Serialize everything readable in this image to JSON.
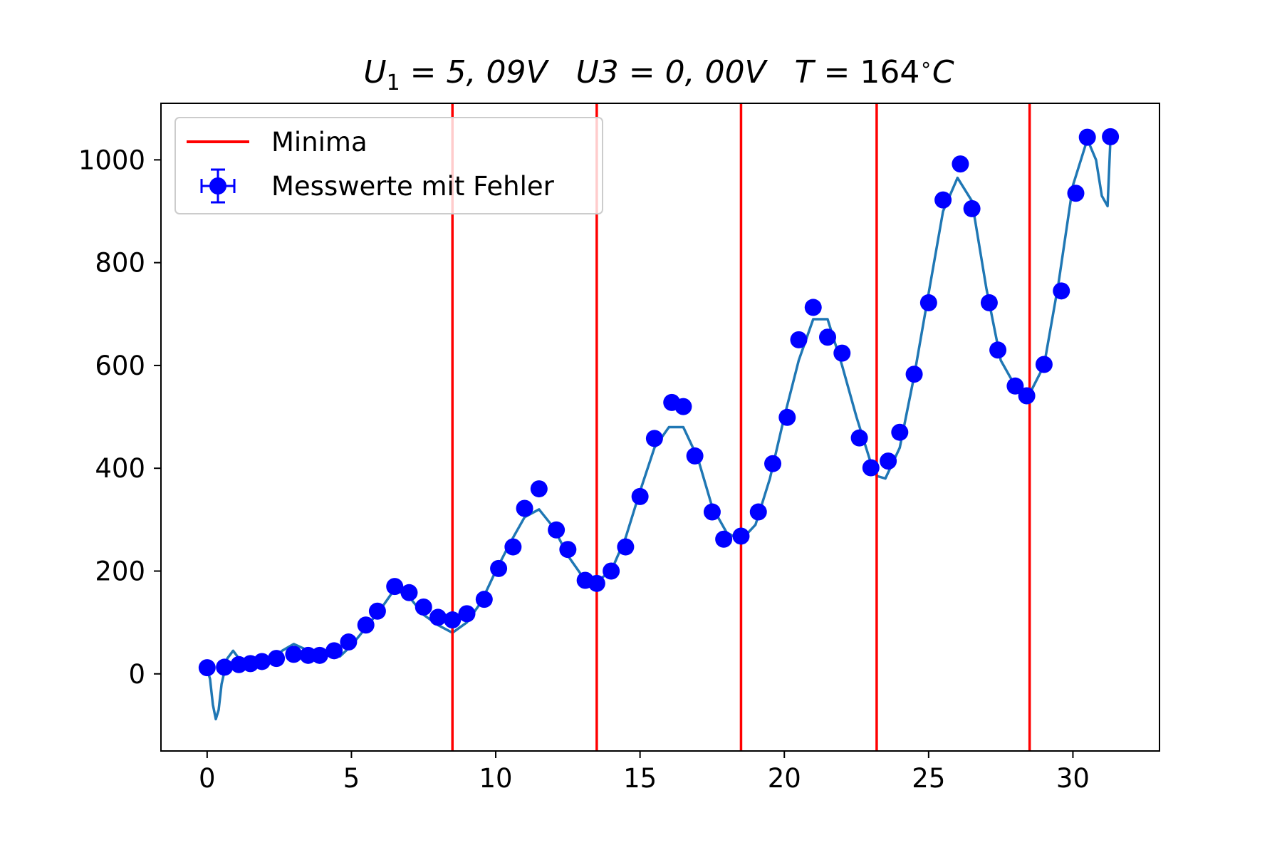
{
  "chart_data": {
    "type": "scatter",
    "title": {
      "u1_sym": "U",
      "u1_sub": "1",
      "u1_val": " = 5, 09V",
      "u3": "U3 = 0, 00V",
      "t_sym": "T",
      "t_val": " = 164",
      "t_deg": "∘",
      "t_unit": "C"
    },
    "xlabel": "",
    "ylabel": "",
    "xlim": [
      -1.6,
      33.0
    ],
    "ylim": [
      -150,
      1110
    ],
    "x_ticks": [
      0,
      5,
      10,
      15,
      20,
      25,
      30
    ],
    "y_ticks": [
      0,
      200,
      400,
      600,
      800,
      1000
    ],
    "grid": false,
    "legend": {
      "placement": "top-left",
      "entries": [
        {
          "label": "Minima",
          "kind": "line",
          "color": "#ff0000"
        },
        {
          "label": "Messwerte mit Fehler",
          "kind": "errorbar-marker",
          "color": "#0000ff"
        }
      ]
    },
    "minima": {
      "name": "Minima",
      "color": "#ff0000",
      "x": [
        8.5,
        13.5,
        18.5,
        23.2,
        28.5
      ]
    },
    "points": {
      "name": "Messwerte mit Fehler",
      "color": "#0000ff",
      "x": [
        0.0,
        0.6,
        1.1,
        1.5,
        1.9,
        2.4,
        3.0,
        3.5,
        3.9,
        4.4,
        4.9,
        5.5,
        5.9,
        6.5,
        7.0,
        7.5,
        8.0,
        8.5,
        9.0,
        9.6,
        10.1,
        10.6,
        11.0,
        11.5,
        12.1,
        12.5,
        13.1,
        13.5,
        14.0,
        14.5,
        15.0,
        15.5,
        16.1,
        16.5,
        16.9,
        17.5,
        17.9,
        18.5,
        19.1,
        19.6,
        20.1,
        20.5,
        21.0,
        21.5,
        22.0,
        22.6,
        23.0,
        23.6,
        24.0,
        24.5,
        25.0,
        25.5,
        26.1,
        26.5,
        27.1,
        27.4,
        28.0,
        28.4,
        29.0,
        29.6,
        30.1,
        30.5,
        31.3
      ],
      "y": [
        12,
        13,
        18,
        20,
        24,
        30,
        38,
        36,
        36,
        45,
        62,
        95,
        122,
        170,
        158,
        130,
        110,
        105,
        117,
        145,
        205,
        247,
        322,
        360,
        280,
        242,
        182,
        176,
        200,
        247,
        345,
        458,
        528,
        520,
        424,
        315,
        262,
        268,
        315,
        409,
        499,
        650,
        713,
        655,
        624,
        459,
        401,
        414,
        470,
        583,
        722,
        922,
        992,
        905,
        722,
        630,
        560,
        541,
        602,
        745,
        935,
        1044,
        1045
      ]
    },
    "fit_curve": {
      "color": "#1f77b4",
      "x": [
        0.0,
        0.1,
        0.2,
        0.3,
        0.4,
        0.5,
        0.7,
        0.9,
        1.1,
        1.3,
        1.6,
        1.9,
        2.2,
        2.6,
        3.0,
        3.4,
        3.8,
        4.2,
        4.6,
        5.0,
        5.5,
        6.0,
        6.5,
        7.0,
        7.5,
        8.0,
        8.5,
        9.0,
        9.5,
        10.0,
        10.5,
        11.0,
        11.5,
        12.0,
        12.5,
        13.0,
        13.5,
        14.0,
        14.5,
        15.0,
        15.5,
        16.0,
        16.5,
        17.0,
        17.5,
        18.0,
        18.5,
        19.0,
        19.5,
        20.0,
        20.5,
        21.0,
        21.5,
        22.0,
        22.5,
        23.0,
        23.2,
        23.5,
        24.0,
        24.5,
        25.0,
        25.5,
        26.0,
        26.5,
        27.0,
        27.5,
        28.0,
        28.5,
        29.0,
        29.5,
        30.0,
        30.5,
        30.8,
        31.0,
        31.2,
        31.3
      ],
      "y": [
        10,
        -10,
        -60,
        -88,
        -70,
        -20,
        30,
        45,
        30,
        15,
        20,
        10,
        25,
        45,
        58,
        48,
        40,
        36,
        34,
        55,
        90,
        125,
        165,
        150,
        115,
        95,
        80,
        100,
        140,
        200,
        255,
        305,
        320,
        285,
        230,
        190,
        180,
        200,
        265,
        355,
        440,
        480,
        480,
        420,
        325,
        275,
        260,
        290,
        380,
        500,
        610,
        690,
        690,
        600,
        500,
        410,
        385,
        380,
        440,
        580,
        740,
        900,
        965,
        920,
        750,
        610,
        560,
        545,
        600,
        760,
        950,
        1040,
        1000,
        930,
        910,
        1040
      ]
    }
  }
}
